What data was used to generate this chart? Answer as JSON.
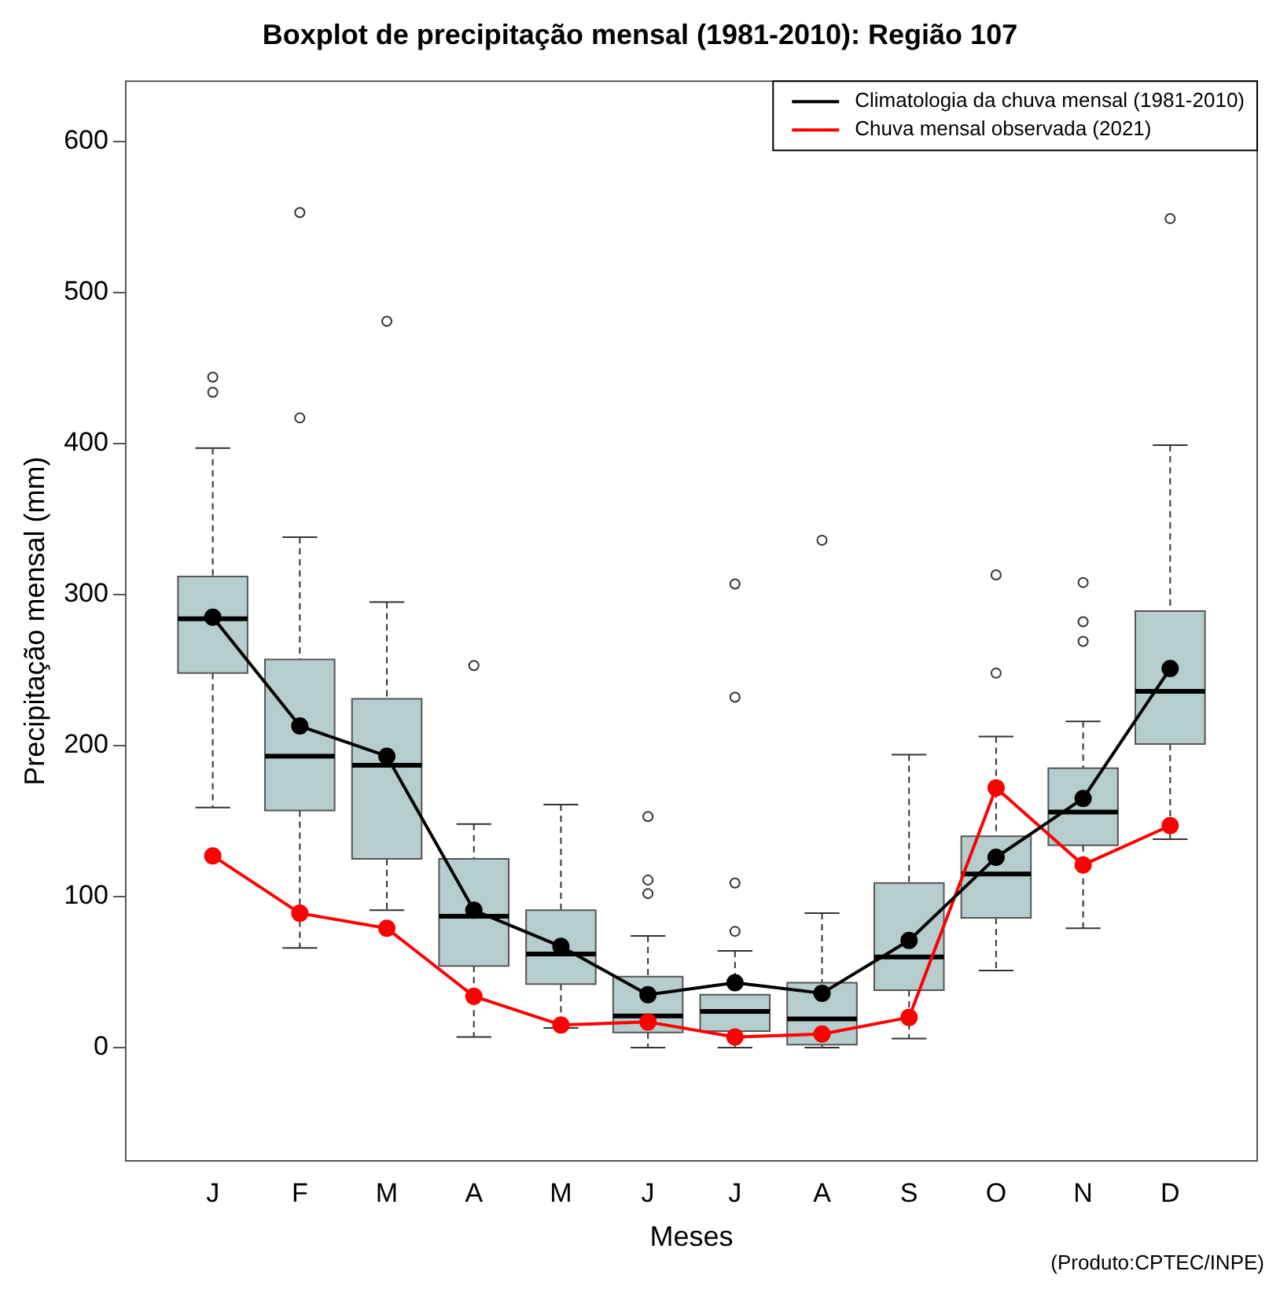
{
  "chart_data": {
    "type": "box",
    "title": "Boxplot de precipitação mensal (1981-2010): Região 107",
    "xlabel": "Meses",
    "ylabel": "Precipitação mensal (mm)",
    "categories": [
      "J",
      "F",
      "M",
      "A",
      "M",
      "J",
      "J",
      "A",
      "S",
      "O",
      "N",
      "D"
    ],
    "ylim": [
      -75,
      640
    ],
    "yticks": [
      0,
      100,
      200,
      300,
      400,
      500,
      600
    ],
    "grid": false,
    "legend": "top right",
    "marker": "circle",
    "annotations": [
      "(Produto:CPTEC/INPE)"
    ],
    "series": [
      {
        "color": "#b5cecd",
        "boxes": [
          {
            "low": 159,
            "q1": 248,
            "median": 284,
            "q3": 312,
            "high": 397,
            "outliers": [
              434,
              444
            ]
          },
          {
            "low": 66,
            "q1": 157,
            "median": 193,
            "q3": 257,
            "high": 338,
            "outliers": [
              417,
              553
            ]
          },
          {
            "low": 91,
            "q1": 125,
            "median": 187,
            "q3": 231,
            "high": 295,
            "outliers": [
              481
            ]
          },
          {
            "low": 7,
            "q1": 54,
            "median": 87,
            "q3": 125,
            "high": 148,
            "outliers": [
              253
            ]
          },
          {
            "low": 13,
            "q1": 42,
            "median": 62,
            "q3": 91,
            "high": 161
          },
          {
            "low": 0,
            "q1": 10,
            "median": 21,
            "q3": 47,
            "high": 74,
            "outliers": [
              102,
              111,
              153
            ]
          },
          {
            "low": 0,
            "q1": 11,
            "median": 24,
            "q3": 35,
            "high": 64,
            "outliers": [
              77,
              109,
              232,
              307
            ]
          },
          {
            "low": 0,
            "q1": 2,
            "median": 19,
            "q3": 43,
            "high": 89,
            "outliers": [
              336
            ]
          },
          {
            "low": 6,
            "q1": 38,
            "median": 60,
            "q3": 109,
            "high": 194
          },
          {
            "low": 51,
            "q1": 86,
            "median": 115,
            "q3": 140,
            "high": 206,
            "outliers": [
              248,
              313
            ]
          },
          {
            "low": 79,
            "q1": 134,
            "median": 156,
            "q3": 185,
            "high": 216,
            "outliers": [
              269,
              282,
              308
            ]
          },
          {
            "low": 138,
            "q1": 201,
            "median": 236,
            "q3": 289,
            "high": 399,
            "outliers": [
              549
            ]
          }
        ]
      },
      {
        "type": "line",
        "name": "Climatologia da chuva mensal (1981-2010)",
        "color": "#000000",
        "values": [
          285,
          213,
          193,
          91,
          67,
          35,
          43,
          36,
          71,
          126,
          165,
          251
        ]
      },
      {
        "type": "line",
        "name": "Chuva mensal observada (2021)",
        "color": "#ff0000",
        "values": [
          127,
          89,
          79,
          34,
          15,
          17,
          7,
          9,
          20,
          172,
          121,
          147
        ]
      }
    ]
  }
}
